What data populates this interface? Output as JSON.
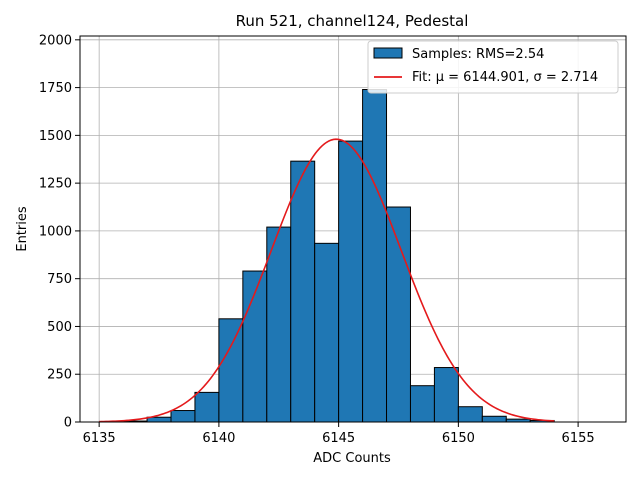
{
  "chart_data": {
    "type": "bar",
    "title": "Run 521, channel124, Pedestal",
    "xlabel": "ADC Counts",
    "ylabel": "Entries",
    "xlim": [
      6134.2,
      6157.0
    ],
    "ylim": [
      0,
      2020
    ],
    "x_ticks": [
      6135,
      6140,
      6145,
      6150,
      6155
    ],
    "y_ticks": [
      0,
      250,
      500,
      750,
      1000,
      1250,
      1500,
      1750,
      2000
    ],
    "grid": true,
    "legend_placement": "top-right",
    "bin_width": 1,
    "bins": [
      {
        "left": 6135,
        "count": 0
      },
      {
        "left": 6136,
        "count": 5
      },
      {
        "left": 6137,
        "count": 25
      },
      {
        "left": 6138,
        "count": 60
      },
      {
        "left": 6139,
        "count": 155
      },
      {
        "left": 6140,
        "count": 540
      },
      {
        "left": 6141,
        "count": 790
      },
      {
        "left": 6142,
        "count": 1020
      },
      {
        "left": 6143,
        "count": 1365
      },
      {
        "left": 6144,
        "count": 935
      },
      {
        "left": 6145,
        "count": 1470
      },
      {
        "left": 6146,
        "count": 1740
      },
      {
        "left": 6147,
        "count": 1125
      },
      {
        "left": 6148,
        "count": 190
      },
      {
        "left": 6149,
        "count": 285
      },
      {
        "left": 6150,
        "count": 80
      },
      {
        "left": 6151,
        "count": 30
      },
      {
        "left": 6152,
        "count": 15
      },
      {
        "left": 6153,
        "count": 8
      }
    ],
    "fit": {
      "mu": 6144.901,
      "sigma": 2.714,
      "amplitude": 1480,
      "x_range": [
        6135,
        6154
      ]
    },
    "legend": [
      {
        "label": "Samples: RMS=2.54",
        "type": "patch"
      },
      {
        "label": "Fit: μ = 6144.901, σ = 2.714",
        "type": "line"
      }
    ],
    "colors": {
      "bar_fill": "#1f77b4",
      "bar_edge": "#000000",
      "fit_line": "#e41a1c",
      "grid": "#b0b0b0"
    }
  }
}
